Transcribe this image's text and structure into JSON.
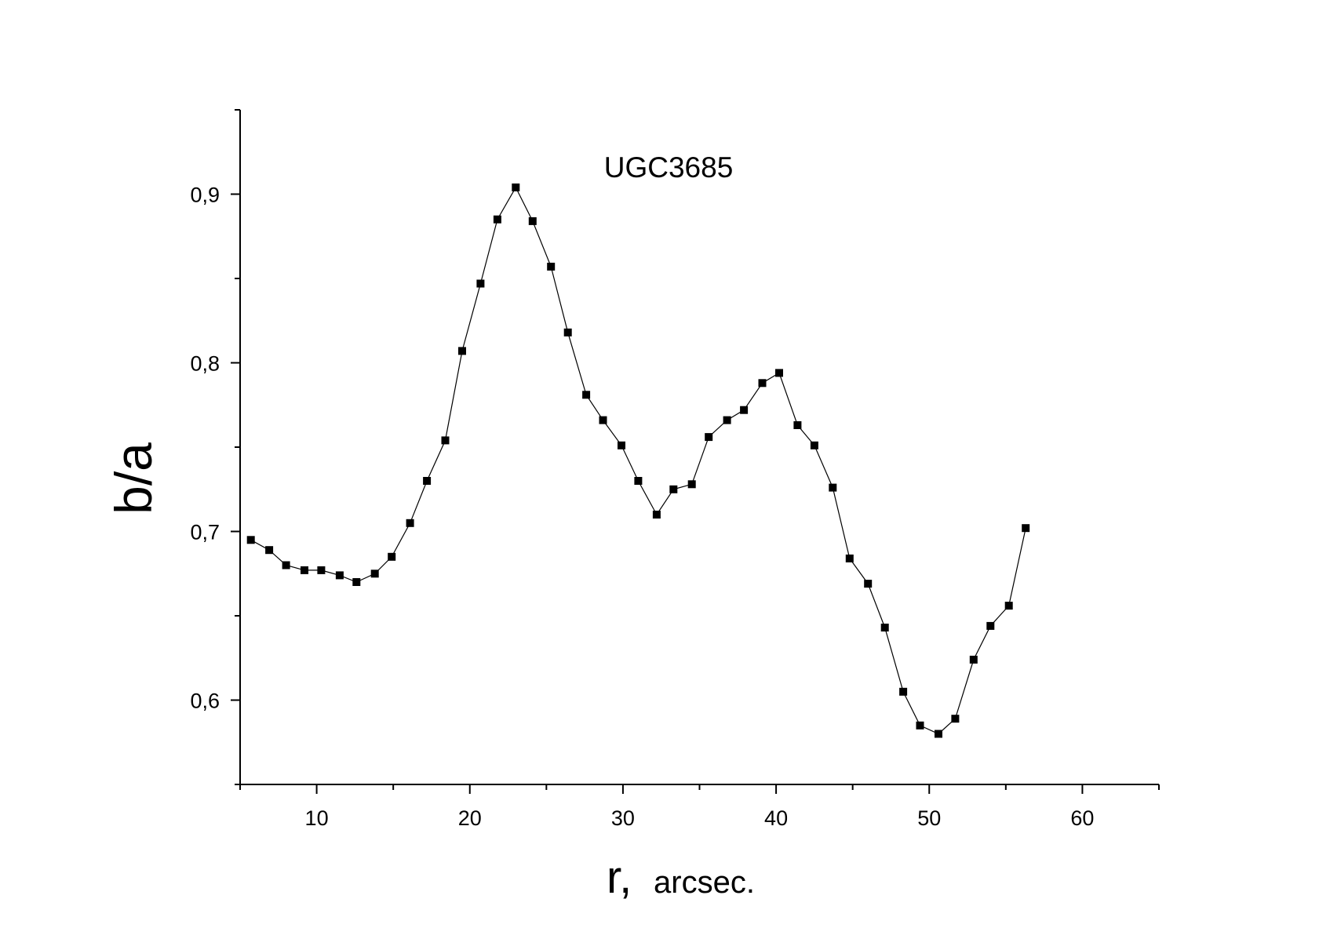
{
  "chart_data": {
    "type": "line",
    "title": "UGC3685",
    "xlabel": "r,",
    "xlabel_unit": "arcsec.",
    "ylabel": "b/a",
    "xlim": [
      5,
      65
    ],
    "ylim": [
      0.55,
      0.95
    ],
    "x_ticks": [
      10,
      20,
      30,
      40,
      50,
      60
    ],
    "x_tick_labels": [
      "10",
      "20",
      "30",
      "40",
      "50",
      "60"
    ],
    "y_ticks": [
      0.6,
      0.7,
      0.8,
      0.9
    ],
    "y_tick_labels": [
      "0,6",
      "0,7",
      "0,8",
      "0,9"
    ],
    "marker": "square",
    "line_color": "#000000",
    "grid": false,
    "series": [
      {
        "x": [
          5.7,
          6.9,
          8.0,
          9.2,
          10.3,
          11.5,
          12.6,
          13.8,
          14.9,
          16.1,
          17.2,
          18.4,
          19.5,
          20.7,
          21.8,
          23.0,
          24.1,
          25.3,
          26.4,
          27.6,
          28.7,
          29.9,
          31.0,
          32.2,
          33.3,
          34.5,
          35.6,
          36.8,
          37.9,
          39.1,
          40.2,
          41.4,
          42.5,
          43.7,
          44.8,
          46.0,
          47.1,
          48.3,
          49.4,
          50.6,
          51.7,
          52.9,
          54.0,
          55.2,
          56.3
        ],
        "y": [
          0.695,
          0.689,
          0.68,
          0.677,
          0.677,
          0.674,
          0.67,
          0.675,
          0.685,
          0.705,
          0.73,
          0.754,
          0.807,
          0.847,
          0.885,
          0.904,
          0.884,
          0.857,
          0.818,
          0.781,
          0.766,
          0.751,
          0.73,
          0.71,
          0.725,
          0.728,
          0.756,
          0.766,
          0.772,
          0.788,
          0.794,
          0.763,
          0.751,
          0.726,
          0.684,
          0.669,
          0.643,
          0.605,
          0.585,
          0.58,
          0.589,
          0.624,
          0.644,
          0.656,
          0.702
        ]
      }
    ]
  }
}
